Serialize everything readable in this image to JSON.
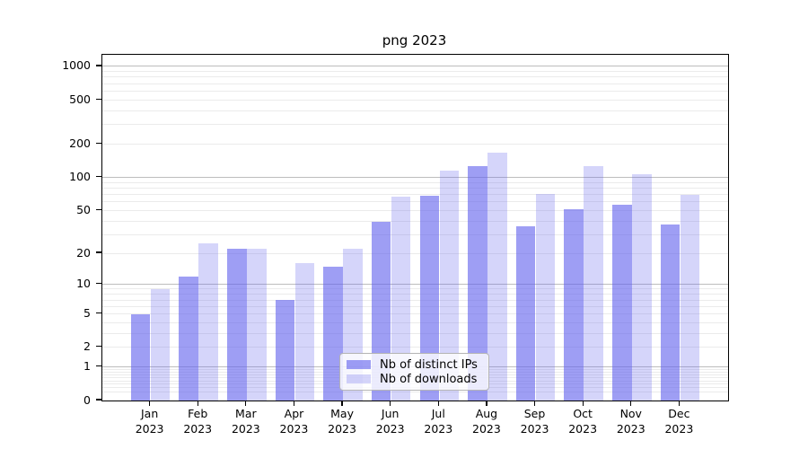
{
  "figure": {
    "title": "png 2023"
  },
  "chart_data": {
    "type": "bar",
    "title": "png 2023",
    "categories": [
      "Jan 2023",
      "Feb 2023",
      "Mar 2023",
      "Apr 2023",
      "May 2023",
      "Jun 2023",
      "Jul 2023",
      "Aug 2023",
      "Sep 2023",
      "Oct 2023",
      "Nov 2023",
      "Dec 2023"
    ],
    "series": [
      {
        "name": "Nb of distinct IPs",
        "base_color": "#6262ee",
        "alpha": 0.62,
        "values": [
          5,
          12,
          22,
          7,
          15,
          39,
          68,
          126,
          36,
          51,
          56,
          37
        ]
      },
      {
        "name": "Nb of downloads",
        "base_color": "#6262ee",
        "alpha": 0.27,
        "values": [
          9,
          25,
          22,
          16,
          22,
          67,
          114,
          167,
          70,
          127,
          107,
          69
        ]
      }
    ],
    "xlabel": "",
    "ylabel": "",
    "yscale": "log1p",
    "yticks": [
      0,
      1,
      2,
      5,
      10,
      20,
      50,
      100,
      200,
      500,
      1000
    ],
    "ylim": [
      0,
      1272
    ],
    "grid": {
      "major": true,
      "minor": true
    },
    "legend_position": "lower center",
    "colors": {
      "axis": "#000000",
      "grid_major": "#bdbdbd",
      "grid_minor": "#ebebeb",
      "legend_border": "#b4b4b4"
    }
  }
}
